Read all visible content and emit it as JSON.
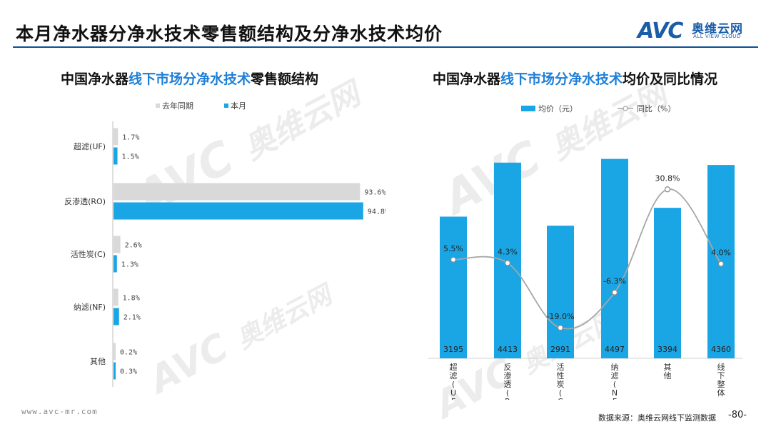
{
  "header": {
    "title": "本月净水器分净水技术零售额结构及分净水技术均价",
    "logo_mark": "AVC",
    "logo_cn": "奥维云网",
    "logo_en": "ALL VIEW CLOUD"
  },
  "left_chart": {
    "title_plain": "中国净水器",
    "title_highlight": "线下市场分净水技术",
    "title_tail": "零售额结构"
  },
  "right_chart": {
    "title_plain": "中国净水器",
    "title_highlight": "线下市场分净水技术",
    "title_tail": "均价及同比情况"
  },
  "chart_data": [
    {
      "type": "bar",
      "orientation": "horizontal",
      "categories": [
        "超滤(UF)",
        "反渗透(RO)",
        "活性炭(C)",
        "纳滤(NF)",
        "其他"
      ],
      "series": [
        {
          "name": "去年同期",
          "color": "#d9d9d9",
          "values": [
            1.7,
            93.6,
            2.6,
            1.8,
            0.2
          ],
          "labels": [
            "1.7%",
            "93.6%",
            "2.6%",
            "1.8%",
            "0.2%"
          ]
        },
        {
          "name": "本月",
          "color": "#1aa6e4",
          "values": [
            1.5,
            94.8,
            1.3,
            2.1,
            0.3
          ],
          "labels": [
            "1.5%",
            "94.8%",
            "1.3%",
            "2.1%",
            "0.3%"
          ]
        }
      ],
      "unit": "%",
      "xlim": [
        0,
        100
      ],
      "legend": "top-left",
      "grid": false
    },
    {
      "type": "bar+line",
      "categories": [
        "超滤(UF)",
        "反渗透(RO)",
        "活性炭(C)",
        "纳滤(NF)",
        "其他",
        "线下整体"
      ],
      "bar_series": {
        "name": "均价（元）",
        "color": "#1aa6e4",
        "values": [
          3195,
          4413,
          2991,
          4497,
          3394,
          4360
        ],
        "labels": [
          "3195",
          "4413",
          "2991",
          "4497",
          "3394",
          "4360"
        ]
      },
      "line_series": {
        "name": "同比（%）",
        "color": "#a6a6a6",
        "values": [
          5.5,
          4.3,
          -19.0,
          -6.3,
          30.8,
          4.0
        ],
        "labels": [
          "5.5%",
          "4.3%",
          "-19.0%",
          "-6.3%",
          "30.8%",
          "4.0%"
        ]
      },
      "bar_ylim": [
        0,
        4700
      ],
      "line_ylim": [
        -30,
        45
      ],
      "legend": "top-center",
      "grid": false
    }
  ],
  "footer": {
    "url": "www.avc-mr.com",
    "source": "数据来源：奥维云网线下监测数据",
    "page": "-80-"
  },
  "watermark": {
    "mark": "AVC",
    "cn": "奥维云网",
    "en": "ALL VIEW CLOUD"
  }
}
